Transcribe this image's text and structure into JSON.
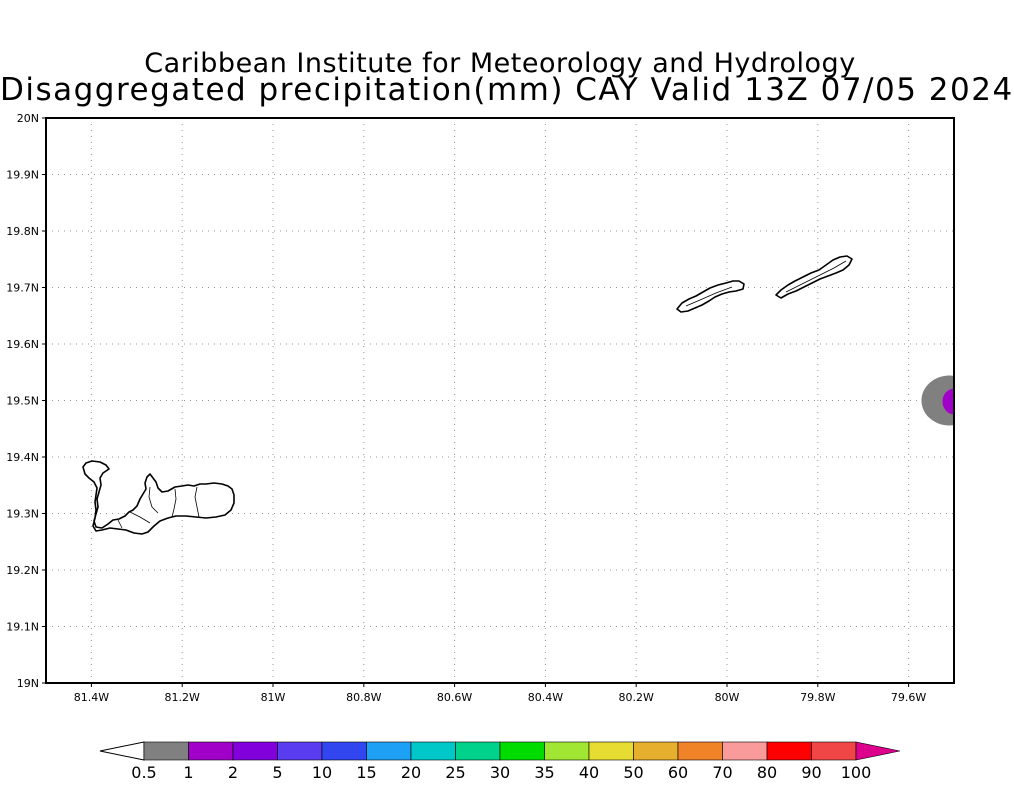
{
  "title": {
    "line1": "Caribbean Institute for Meteorology and Hydrology",
    "line2": "Disaggregated precipitation(mm) CAY Valid 13Z 07/05 2024"
  },
  "map": {
    "lon_range": [
      -81.5,
      -79.5
    ],
    "lat_range": [
      19.0,
      20.0
    ],
    "x_ticks": [
      {
        "lon": -81.4,
        "label": "81.4W"
      },
      {
        "lon": -81.2,
        "label": "81.2W"
      },
      {
        "lon": -81.0,
        "label": "81W"
      },
      {
        "lon": -80.8,
        "label": "80.8W"
      },
      {
        "lon": -80.6,
        "label": "80.6W"
      },
      {
        "lon": -80.4,
        "label": "80.4W"
      },
      {
        "lon": -80.2,
        "label": "80.2W"
      },
      {
        "lon": -80.0,
        "label": "80W"
      },
      {
        "lon": -79.8,
        "label": "79.8W"
      },
      {
        "lon": -79.6,
        "label": "79.6W"
      }
    ],
    "y_ticks": [
      {
        "lat": 20.0,
        "label": "20N"
      },
      {
        "lat": 19.9,
        "label": "19.9N"
      },
      {
        "lat": 19.8,
        "label": "19.8N"
      },
      {
        "lat": 19.7,
        "label": "19.7N"
      },
      {
        "lat": 19.6,
        "label": "19.6N"
      },
      {
        "lat": 19.5,
        "label": "19.5N"
      },
      {
        "lat": 19.4,
        "label": "19.4N"
      },
      {
        "lat": 19.3,
        "label": "19.3N"
      },
      {
        "lat": 19.2,
        "label": "19.2N"
      },
      {
        "lat": 19.1,
        "label": "19.1N"
      },
      {
        "lat": 19.0,
        "label": "19N"
      }
    ],
    "grid": true,
    "precip_cell": {
      "lon": -79.51,
      "lat": 19.5,
      "outer_color": "#808080",
      "inner_color": "#a000c8"
    }
  },
  "colorbar": {
    "labels": [
      "0.5",
      "1",
      "2",
      "5",
      "10",
      "15",
      "20",
      "25",
      "30",
      "35",
      "40",
      "50",
      "60",
      "70",
      "80",
      "90",
      "100"
    ],
    "colors": [
      "#808080",
      "#a000c8",
      "#8200dc",
      "#5a3cf0",
      "#3246f0",
      "#1ea0f5",
      "#00c8c8",
      "#00d28c",
      "#00dc00",
      "#a0e632",
      "#e6dc32",
      "#e6af2d",
      "#f08228",
      "#fa9b9b",
      "#ff0000",
      "#f04646"
    ],
    "below_color": "#ffffff",
    "above_color": "#dc008c"
  }
}
